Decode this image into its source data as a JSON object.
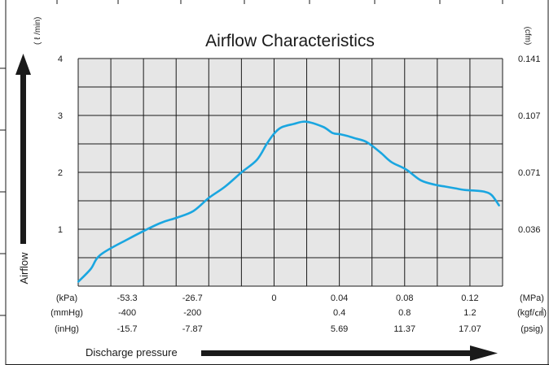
{
  "chart_data": {
    "type": "line",
    "title": "Airflow Characteristics",
    "ylabel": "Airflow",
    "xlabel": "Discharge pressure",
    "y_unit_left": "( ℓ /min)",
    "y_unit_right": "(cfm)",
    "ylim": [
      0,
      4
    ],
    "yticks_left": [
      "4",
      "3",
      "2",
      "1"
    ],
    "yticks_right": [
      "0.141",
      "0.107",
      "0.071",
      "0.036"
    ],
    "grid": true,
    "x_scale_rows": [
      {
        "unit_left": "(kPa)",
        "unit_right": "(MPa)",
        "ticks": [
          "-53.3",
          "-26.7",
          "0",
          "0.04",
          "0.08",
          "0.12"
        ]
      },
      {
        "unit_left": "(mmHg)",
        "unit_right": "(kgf/㎠)",
        "ticks": [
          "-400",
          "-200",
          "",
          "0.4",
          "0.8",
          "1.2"
        ]
      },
      {
        "unit_left": "(inHg)",
        "unit_right": "(psig)",
        "ticks": [
          "-15.7",
          "-7.87",
          "",
          "5.69",
          "11.37",
          "17.07"
        ]
      }
    ],
    "series": [
      {
        "color": "#1aa6e0",
        "x_kpa_scale": [
          -80,
          -75,
          -71,
          -60,
          -47,
          -40,
          -33,
          -26.7,
          -20,
          -13.3,
          -7,
          -3,
          0,
          3,
          8,
          13,
          20,
          24,
          27,
          30,
          33,
          37,
          40,
          44,
          48,
          54,
          60,
          66,
          70,
          74,
          78,
          82,
          86,
          89,
          92
        ],
        "y": [
          0.08,
          0.3,
          0.55,
          0.82,
          1.1,
          1.2,
          1.32,
          1.55,
          1.75,
          2.0,
          2.22,
          2.5,
          2.68,
          2.79,
          2.85,
          2.89,
          2.8,
          2.69,
          2.67,
          2.64,
          2.6,
          2.55,
          2.47,
          2.33,
          2.18,
          2.05,
          1.86,
          1.78,
          1.75,
          1.72,
          1.69,
          1.68,
          1.66,
          1.6,
          1.42
        ]
      }
    ]
  }
}
